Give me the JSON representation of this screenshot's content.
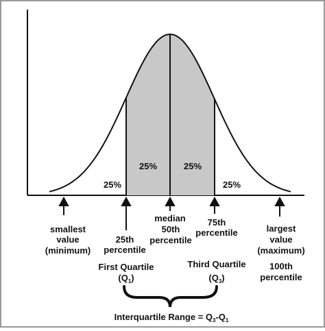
{
  "regions": {
    "left_tail": "25%",
    "q1_to_median": "25%",
    "median_to_q3": "25%",
    "right_tail": "25%"
  },
  "markers": {
    "minimum": {
      "line1": "smallest",
      "line2": "value",
      "line3": "(minimum)"
    },
    "q1": {
      "line1": "25th",
      "line2": "percentile",
      "line3": "First Quartile",
      "line4_base": "(Q",
      "line4_sub": "1",
      "line4_end": ")"
    },
    "median": {
      "line1": "median",
      "line2": "50th",
      "line3": "percentile"
    },
    "q3": {
      "line1": "75th",
      "line2": "percentile",
      "line3": "Third Quartile",
      "line4_base": "(Q",
      "line4_sub": "3",
      "line4_end": ")"
    },
    "maximum": {
      "line1": "largest",
      "line2": "value",
      "line3": "(maximum)",
      "line4": "100th",
      "line5": "percentile"
    }
  },
  "iqr": {
    "base": "Interquartile Range = Q",
    "sub1": "3",
    "mid": "-Q",
    "sub2": "1"
  },
  "colors": {
    "shaded": "#c8c8c8",
    "stroke": "#111111",
    "border": "#999999"
  }
}
